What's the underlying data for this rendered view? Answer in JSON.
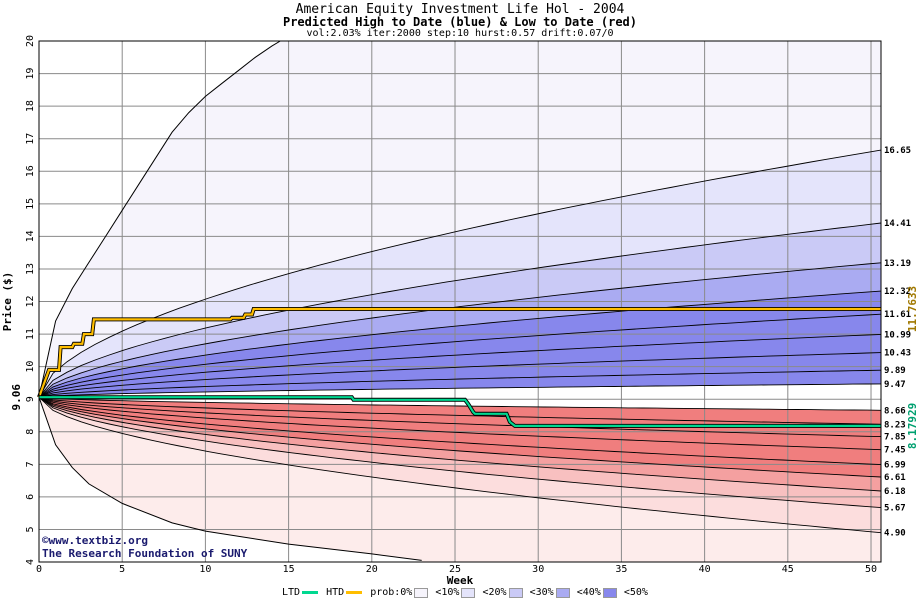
{
  "chart_data": {
    "type": "area",
    "title": "American Equity Investment Life Hol - 2004",
    "subtitle": "Predicted High to Date (blue) &  Low to Date (red)",
    "params": "vol:2.03% iter:2000 step:10 hurst:0.57 drift:0.07/0",
    "xlabel": "Week",
    "ylabel": "Price ($)",
    "xlim": [
      0,
      50.6
    ],
    "ylim": [
      4,
      20
    ],
    "x_ticks": [
      0,
      5,
      10,
      15,
      20,
      25,
      30,
      35,
      40,
      45,
      50
    ],
    "y_ticks": [
      4,
      5,
      6,
      7,
      8,
      9,
      10,
      11,
      12,
      13,
      14,
      15,
      16,
      17,
      18,
      19,
      20
    ],
    "grid": true,
    "start_price": 9.06,
    "start_price_label": "9.06",
    "percentile_end_values": [
      16.65,
      14.41,
      13.19,
      12.32,
      11.61,
      10.99,
      10.43,
      9.89,
      9.47,
      8.66,
      8.23,
      7.85,
      7.45,
      6.99,
      6.61,
      6.18,
      5.67,
      4.9
    ],
    "percentile_end_labels": [
      "16.65",
      "14.41",
      "13.19",
      "12.32",
      "11.61",
      "10.99",
      "10.43",
      "9.89",
      "9.47",
      "8.66",
      "8.23",
      "7.85",
      "7.45",
      "6.99",
      "6.61",
      "6.18",
      "5.67",
      "4.90"
    ],
    "outer_upper": {
      "x": [
        0,
        1,
        2,
        3,
        4,
        5,
        6,
        7,
        8,
        9,
        10,
        11,
        12,
        13,
        14,
        14.5
      ],
      "y": [
        9.06,
        11.4,
        12.4,
        13.2,
        14.0,
        14.8,
        15.6,
        16.4,
        17.2,
        17.8,
        18.3,
        18.7,
        19.1,
        19.5,
        19.85,
        20
      ]
    },
    "outer_lower": {
      "x": [
        0,
        1,
        2,
        3,
        5,
        8,
        10,
        15,
        20,
        23
      ],
      "y": [
        9.06,
        7.6,
        6.9,
        6.4,
        5.8,
        5.2,
        4.95,
        4.55,
        4.25,
        4.05
      ]
    },
    "series": [
      {
        "name": "HTD",
        "color": "#ffbe00",
        "x": [
          0,
          0.6,
          1.2,
          1.3,
          2.0,
          2.1,
          2.6,
          2.7,
          3.2,
          3.3,
          11.5,
          11.6,
          12.3,
          12.4,
          12.8,
          12.9,
          50.6
        ],
        "y": [
          9.06,
          9.9,
          9.9,
          10.6,
          10.6,
          10.7,
          10.7,
          11.0,
          11.0,
          11.45,
          11.45,
          11.5,
          11.5,
          11.6,
          11.6,
          11.77,
          11.77
        ]
      },
      {
        "name": "LTD",
        "color": "#00d890",
        "x": [
          0,
          18.8,
          18.9,
          25.6,
          25.8,
          26.1,
          26.2,
          28.1,
          28.3,
          28.6,
          50.6
        ],
        "y": [
          9.06,
          9.06,
          8.98,
          8.98,
          8.85,
          8.6,
          8.55,
          8.55,
          8.3,
          8.18,
          8.18
        ]
      }
    ],
    "htd_value_label": "11.7633",
    "ltd_value_label": "8.17929",
    "band_colors": [
      "#f6f4fc",
      "#e4e4fb",
      "#cacaf6",
      "#aaabf2",
      "#8787ec"
    ],
    "low_band_colors": [
      "#fdeceb",
      "#fcdddd",
      "#f8c0c0",
      "#f4a0a0",
      "#f07e7e"
    ],
    "legend": {
      "ltd": "LTD",
      "htd": "HTD",
      "prob": "prob:0%",
      "items": [
        "<10%",
        "<20%",
        "<30%",
        "<40%",
        "<50%"
      ]
    }
  },
  "watermark": {
    "line1": "www.textbiz.org",
    "line2": "The Research Foundation of SUNY"
  }
}
